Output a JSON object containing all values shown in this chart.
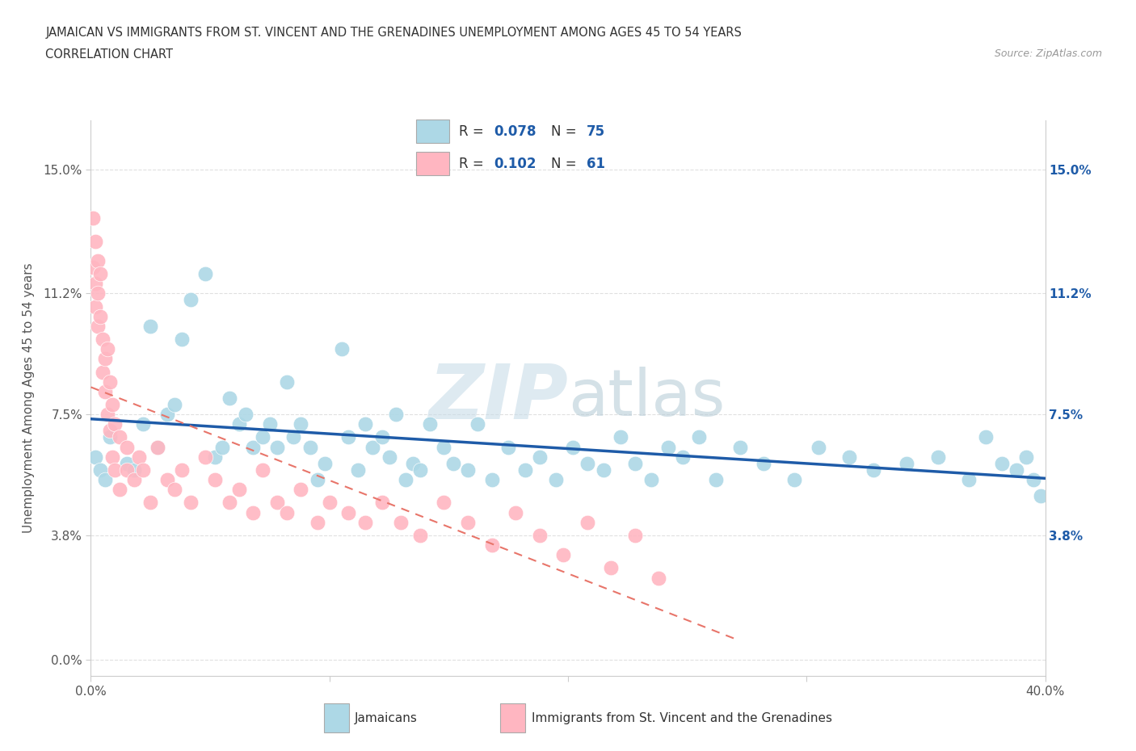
{
  "title_line1": "JAMAICAN VS IMMIGRANTS FROM ST. VINCENT AND THE GRENADINES UNEMPLOYMENT AMONG AGES 45 TO 54 YEARS",
  "title_line2": "CORRELATION CHART",
  "source_text": "Source: ZipAtlas.com",
  "ylabel": "Unemployment Among Ages 45 to 54 years",
  "xlim": [
    0.0,
    0.4
  ],
  "ylim": [
    -0.005,
    0.165
  ],
  "yticks": [
    0.0,
    0.038,
    0.075,
    0.112,
    0.15
  ],
  "ytick_labels": [
    "0.0%",
    "3.8%",
    "7.5%",
    "11.2%",
    "15.0%"
  ],
  "xticks": [
    0.0,
    0.1,
    0.2,
    0.3,
    0.4
  ],
  "xtick_labels": [
    "0.0%",
    "",
    "",
    "",
    "40.0%"
  ],
  "right_ytick_labels": [
    "",
    "3.8%",
    "7.5%",
    "11.2%",
    "15.0%"
  ],
  "legend_R1": "0.078",
  "legend_N1": "75",
  "legend_R2": "0.102",
  "legend_N2": "61",
  "blue_color": "#ADD8E6",
  "pink_color": "#FFB6C1",
  "blue_line_color": "#1E5BA8",
  "pink_line_color": "#E8756A",
  "grid_color": "#E0E0E0",
  "background_color": "#FFFFFF",
  "text_color": "#555555",
  "blue_text_color": "#1E5BA8",
  "watermark_color": "#D8E8F0",
  "blue_x": [
    0.002,
    0.004,
    0.006,
    0.008,
    0.015,
    0.018,
    0.022,
    0.025,
    0.028,
    0.032,
    0.035,
    0.038,
    0.042,
    0.048,
    0.052,
    0.055,
    0.058,
    0.062,
    0.065,
    0.068,
    0.072,
    0.075,
    0.078,
    0.082,
    0.085,
    0.088,
    0.092,
    0.095,
    0.098,
    0.105,
    0.108,
    0.112,
    0.115,
    0.118,
    0.122,
    0.125,
    0.128,
    0.132,
    0.135,
    0.138,
    0.142,
    0.148,
    0.152,
    0.158,
    0.162,
    0.168,
    0.175,
    0.182,
    0.188,
    0.195,
    0.202,
    0.208,
    0.215,
    0.222,
    0.228,
    0.235,
    0.242,
    0.248,
    0.255,
    0.262,
    0.272,
    0.282,
    0.295,
    0.305,
    0.318,
    0.328,
    0.342,
    0.355,
    0.368,
    0.375,
    0.382,
    0.388,
    0.392,
    0.395,
    0.398
  ],
  "blue_y": [
    0.062,
    0.058,
    0.055,
    0.068,
    0.06,
    0.058,
    0.072,
    0.102,
    0.065,
    0.075,
    0.078,
    0.098,
    0.11,
    0.118,
    0.062,
    0.065,
    0.08,
    0.072,
    0.075,
    0.065,
    0.068,
    0.072,
    0.065,
    0.085,
    0.068,
    0.072,
    0.065,
    0.055,
    0.06,
    0.095,
    0.068,
    0.058,
    0.072,
    0.065,
    0.068,
    0.062,
    0.075,
    0.055,
    0.06,
    0.058,
    0.072,
    0.065,
    0.06,
    0.058,
    0.072,
    0.055,
    0.065,
    0.058,
    0.062,
    0.055,
    0.065,
    0.06,
    0.058,
    0.068,
    0.06,
    0.055,
    0.065,
    0.062,
    0.068,
    0.055,
    0.065,
    0.06,
    0.055,
    0.065,
    0.062,
    0.058,
    0.06,
    0.062,
    0.055,
    0.068,
    0.06,
    0.058,
    0.062,
    0.055,
    0.05
  ],
  "pink_x": [
    0.001,
    0.001,
    0.002,
    0.002,
    0.002,
    0.003,
    0.003,
    0.003,
    0.004,
    0.004,
    0.005,
    0.005,
    0.006,
    0.006,
    0.007,
    0.007,
    0.008,
    0.008,
    0.009,
    0.009,
    0.01,
    0.01,
    0.012,
    0.012,
    0.015,
    0.015,
    0.018,
    0.02,
    0.022,
    0.025,
    0.028,
    0.032,
    0.035,
    0.038,
    0.042,
    0.048,
    0.052,
    0.058,
    0.062,
    0.068,
    0.072,
    0.078,
    0.082,
    0.088,
    0.095,
    0.1,
    0.108,
    0.115,
    0.122,
    0.13,
    0.138,
    0.148,
    0.158,
    0.168,
    0.178,
    0.188,
    0.198,
    0.208,
    0.218,
    0.228,
    0.238
  ],
  "pink_y": [
    0.135,
    0.12,
    0.128,
    0.115,
    0.108,
    0.122,
    0.112,
    0.102,
    0.118,
    0.105,
    0.098,
    0.088,
    0.092,
    0.082,
    0.095,
    0.075,
    0.085,
    0.07,
    0.078,
    0.062,
    0.072,
    0.058,
    0.068,
    0.052,
    0.065,
    0.058,
    0.055,
    0.062,
    0.058,
    0.048,
    0.065,
    0.055,
    0.052,
    0.058,
    0.048,
    0.062,
    0.055,
    0.048,
    0.052,
    0.045,
    0.058,
    0.048,
    0.045,
    0.052,
    0.042,
    0.048,
    0.045,
    0.042,
    0.048,
    0.042,
    0.038,
    0.048,
    0.042,
    0.035,
    0.045,
    0.038,
    0.032,
    0.042,
    0.028,
    0.038,
    0.025
  ]
}
